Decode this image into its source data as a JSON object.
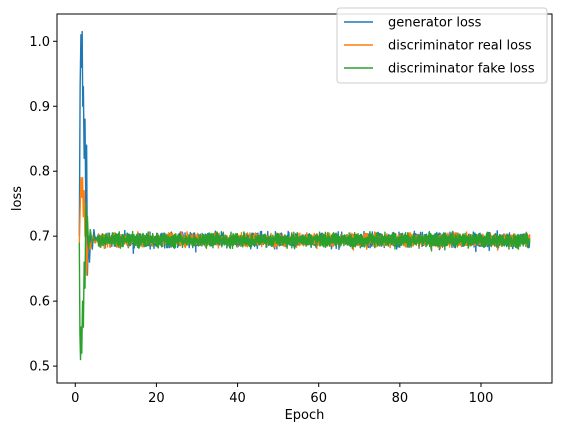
{
  "chart_data": {
    "type": "line",
    "title": "",
    "xlabel": "Epoch",
    "ylabel": "loss",
    "xlim": [
      -4.5,
      117.5
    ],
    "ylim": [
      0.474,
      1.042
    ],
    "xticks": [
      0,
      20,
      40,
      60,
      80,
      100
    ],
    "yticks": [
      0.5,
      0.6,
      0.7,
      0.8,
      0.9,
      1.0
    ],
    "xtick_labels": [
      "0",
      "20",
      "40",
      "60",
      "80",
      "100"
    ],
    "ytick_labels": [
      "0.5",
      "0.6",
      "0.7",
      "0.8",
      "0.9",
      "1.0"
    ],
    "grid": false,
    "legend_position": "top-right",
    "x_range": [
      1,
      112
    ],
    "plateau": 0.694,
    "series": [
      {
        "name": "generator loss",
        "color": "#1f77b4",
        "early": [
          [
            1.0,
            0.7
          ],
          [
            1.2,
            0.93
          ],
          [
            1.4,
            1.01
          ],
          [
            1.55,
            0.96
          ],
          [
            1.7,
            1.015
          ],
          [
            1.85,
            0.9
          ],
          [
            2.0,
            0.93
          ],
          [
            2.2,
            0.82
          ],
          [
            2.4,
            0.88
          ],
          [
            2.6,
            0.74
          ],
          [
            2.8,
            0.84
          ],
          [
            3.0,
            0.64
          ],
          [
            3.2,
            0.7
          ],
          [
            3.5,
            0.66
          ],
          [
            3.8,
            0.7
          ],
          [
            4.2,
            0.68
          ],
          [
            4.6,
            0.71
          ],
          [
            5.0,
            0.69
          ],
          [
            5.5,
            0.7
          ]
        ],
        "noise": 0.016
      },
      {
        "name": "discriminator real loss",
        "color": "#ff7f0e",
        "early": [
          [
            1.0,
            0.69
          ],
          [
            1.2,
            0.74
          ],
          [
            1.4,
            0.79
          ],
          [
            1.6,
            0.76
          ],
          [
            1.8,
            0.79
          ],
          [
            2.0,
            0.73
          ],
          [
            2.2,
            0.77
          ],
          [
            2.4,
            0.7
          ],
          [
            2.6,
            0.74
          ],
          [
            2.8,
            0.64
          ],
          [
            3.0,
            0.67
          ],
          [
            3.3,
            0.7
          ],
          [
            3.7,
            0.68
          ],
          [
            4.2,
            0.7
          ],
          [
            4.8,
            0.69
          ],
          [
            5.5,
            0.695
          ]
        ],
        "noise": 0.014
      },
      {
        "name": "discriminator fake loss",
        "color": "#2ca02c",
        "early": [
          [
            1.0,
            0.69
          ],
          [
            1.15,
            0.55
          ],
          [
            1.3,
            0.51
          ],
          [
            1.45,
            0.56
          ],
          [
            1.6,
            0.52
          ],
          [
            1.8,
            0.6
          ],
          [
            2.0,
            0.56
          ],
          [
            2.2,
            0.66
          ],
          [
            2.4,
            0.62
          ],
          [
            2.6,
            0.75
          ],
          [
            2.8,
            0.7
          ],
          [
            3.0,
            0.73
          ],
          [
            3.3,
            0.68
          ],
          [
            3.7,
            0.71
          ],
          [
            4.2,
            0.69
          ],
          [
            4.8,
            0.7
          ],
          [
            5.5,
            0.693
          ]
        ],
        "noise": 0.015
      }
    ]
  }
}
